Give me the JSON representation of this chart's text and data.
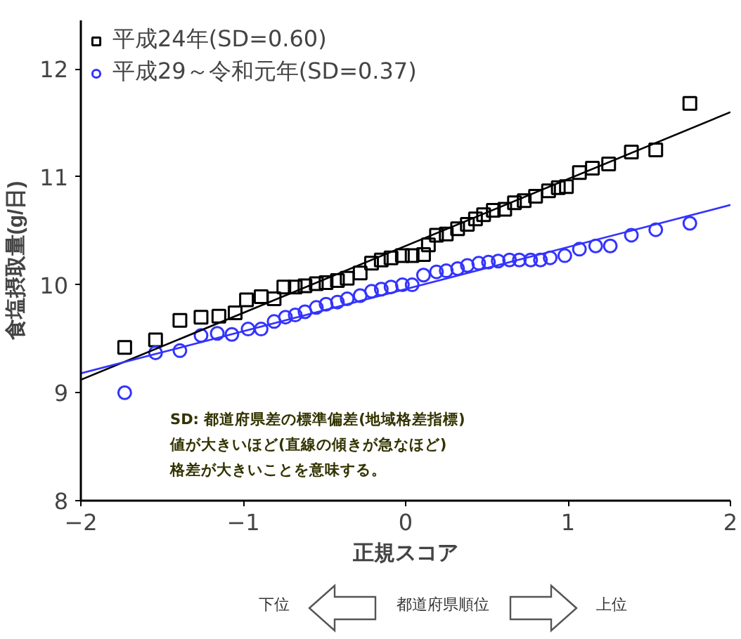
{
  "chart_data": {
    "type": "scatter",
    "xlabel": "正規スコア",
    "ylabel": "食塩摂取量(g/日)",
    "xlim": [
      -2,
      2
    ],
    "ylim": [
      8,
      12.45
    ],
    "xticks": [
      -2,
      -1,
      0,
      1,
      2
    ],
    "yticks": [
      8,
      9,
      10,
      11,
      12
    ],
    "grid": false,
    "legend": "top left",
    "series": [
      {
        "name": "平成24年(SD=0.60)",
        "color": "#000000",
        "marker": "square",
        "x": [
          -1.73,
          -1.54,
          -1.39,
          -1.26,
          -1.15,
          -1.05,
          -0.98,
          -0.89,
          -0.81,
          -0.75,
          -0.68,
          -0.62,
          -0.55,
          -0.49,
          -0.42,
          -0.36,
          -0.28,
          -0.21,
          -0.15,
          -0.09,
          -0.02,
          0.04,
          0.11,
          0.14,
          0.19,
          0.25,
          0.32,
          0.38,
          0.43,
          0.48,
          0.54,
          0.61,
          0.67,
          0.73,
          0.8,
          0.88,
          0.94,
          0.99,
          1.07,
          1.15,
          1.25,
          1.39,
          1.54,
          1.75
        ],
        "values": [
          9.42,
          9.49,
          9.67,
          9.7,
          9.71,
          9.74,
          9.86,
          9.89,
          9.87,
          9.98,
          9.98,
          9.99,
          10.01,
          10.02,
          10.04,
          10.06,
          10.11,
          10.2,
          10.23,
          10.25,
          10.27,
          10.27,
          10.28,
          10.37,
          10.46,
          10.47,
          10.52,
          10.56,
          10.61,
          10.65,
          10.69,
          10.7,
          10.76,
          10.78,
          10.82,
          10.87,
          10.9,
          10.91,
          11.04,
          11.08,
          11.12,
          11.23,
          11.25,
          11.68
        ]
      },
      {
        "name": "平成29～令和元年(SD=0.37)",
        "color": "#3333ff",
        "marker": "circle",
        "x": [
          -1.73,
          -1.54,
          -1.39,
          -1.26,
          -1.16,
          -1.07,
          -0.97,
          -0.89,
          -0.81,
          -0.74,
          -0.68,
          -0.62,
          -0.55,
          -0.49,
          -0.42,
          -0.36,
          -0.28,
          -0.21,
          -0.15,
          -0.09,
          -0.02,
          0.04,
          0.11,
          0.19,
          0.25,
          0.32,
          0.38,
          0.45,
          0.51,
          0.57,
          0.64,
          0.7,
          0.77,
          0.83,
          0.89,
          0.98,
          1.07,
          1.17,
          1.26,
          1.39,
          1.54,
          1.75
        ],
        "values": [
          9.0,
          9.37,
          9.39,
          9.53,
          9.55,
          9.54,
          9.59,
          9.59,
          9.66,
          9.7,
          9.72,
          9.75,
          9.79,
          9.82,
          9.84,
          9.87,
          9.9,
          9.94,
          9.96,
          9.98,
          10.0,
          10.0,
          10.09,
          10.12,
          10.13,
          10.15,
          10.18,
          10.2,
          10.21,
          10.22,
          10.23,
          10.23,
          10.23,
          10.23,
          10.25,
          10.27,
          10.33,
          10.36,
          10.36,
          10.46,
          10.51,
          10.57
        ]
      },
      {
        "type": "line",
        "color": "#000000",
        "x": [
          -2,
          2
        ],
        "values": [
          9.12,
          11.6
        ]
      },
      {
        "type": "line",
        "color": "#3333ff",
        "x": [
          -2,
          2
        ],
        "values": [
          9.18,
          10.74
        ]
      }
    ],
    "annotations": [
      "SD: 都道府県差の標準偏差(地域格差指標)\n値が大きいほど(直線の傾きが急なほど)\n格差が大きいことを意味する。",
      "下位",
      "都道府県順位",
      "上位"
    ]
  }
}
